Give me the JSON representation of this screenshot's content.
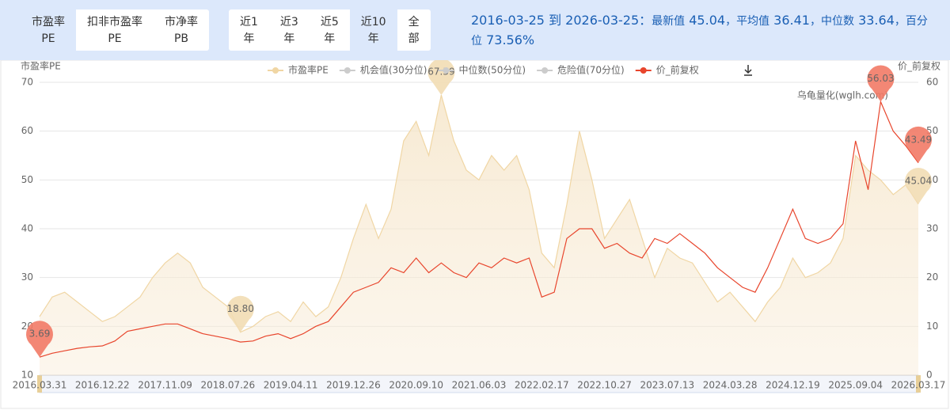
{
  "ui": {
    "metric_tabs": [
      {
        "line1": "市盈率",
        "line2": "PE",
        "active": true
      },
      {
        "line1": "扣非市盈率",
        "line2": "PE",
        "active": false
      },
      {
        "line1": "市净率",
        "line2": "PB",
        "active": false
      }
    ],
    "period_tabs": [
      {
        "line1": "近1",
        "line2": "年",
        "active": false
      },
      {
        "line1": "近3",
        "line2": "年",
        "active": false
      },
      {
        "line1": "近5",
        "line2": "年",
        "active": false
      },
      {
        "line1": "近10",
        "line2": "年",
        "active": true
      },
      {
        "line1": "全",
        "line2": "部",
        "active": false
      }
    ],
    "stats": {
      "range": "2016-03-25 到 2026-03-25：",
      "separator": "，",
      "items": [
        {
          "label": "最新值",
          "value": 45.04
        },
        {
          "label": "平均值",
          "value": 36.41
        },
        {
          "label": "中位数",
          "value": 33.64
        },
        {
          "label": "百分位",
          "value": "73.56%"
        }
      ]
    }
  },
  "chart_data": {
    "type": "line",
    "y_axis_name": "市盈率PE",
    "y2_axis_name": "价_前复权",
    "watermark": "乌龟量化(wglh.com)",
    "grid": true,
    "legend_position": "top",
    "categories": [
      "2016.03.31",
      null,
      null,
      null,
      null,
      "2016.12.22",
      null,
      null,
      null,
      null,
      "2017.11.09",
      null,
      null,
      null,
      null,
      "2018.07.26",
      null,
      null,
      null,
      null,
      "2019.04.11",
      null,
      null,
      null,
      null,
      "2019.12.26",
      null,
      null,
      null,
      null,
      "2020.09.10",
      null,
      null,
      null,
      null,
      "2021.06.03",
      null,
      null,
      null,
      null,
      "2022.02.17",
      null,
      null,
      null,
      null,
      "2022.10.27",
      null,
      null,
      null,
      null,
      "2023.07.13",
      null,
      null,
      null,
      null,
      "2024.03.28",
      null,
      null,
      null,
      null,
      "2024.12.19",
      null,
      null,
      null,
      null,
      "2025.09.04",
      null,
      null,
      null,
      null,
      "2026.03.17"
    ],
    "ylim": [
      10,
      70
    ],
    "yticks": [
      10,
      20,
      30,
      40,
      50,
      60,
      70
    ],
    "y2lim": [
      0,
      60
    ],
    "y2ticks": [
      0,
      10,
      20,
      30,
      40,
      50,
      60
    ],
    "series": [
      {
        "name": "市盈率PE",
        "color": "#f0d6a4",
        "area": true,
        "pin_color": "#f2ddb4",
        "pin_text_color": "#555555",
        "mark_points": [
          "min",
          "max",
          "last"
        ],
        "values": [
          22,
          26,
          27,
          25,
          23,
          21,
          22,
          24,
          26,
          30,
          33,
          35,
          33,
          28,
          26,
          24,
          18.8,
          20,
          22,
          23,
          21,
          25,
          22,
          24,
          30,
          38,
          45,
          38,
          44,
          58,
          62,
          55,
          67.39,
          58,
          52,
          50,
          55,
          52,
          55,
          48,
          35,
          32,
          45,
          60,
          50,
          38,
          42,
          46,
          38,
          30,
          36,
          34,
          33,
          29,
          25,
          27,
          24,
          21,
          25,
          28,
          34,
          30,
          31,
          33,
          38,
          55,
          52,
          50,
          47,
          49,
          45.04
        ],
        "value_labels": [
          null,
          null,
          null,
          null,
          null,
          null,
          null,
          null,
          null,
          null,
          null,
          null,
          null,
          null,
          null,
          null,
          "18.80",
          null,
          null,
          null,
          null,
          null,
          null,
          null,
          null,
          null,
          null,
          null,
          null,
          null,
          null,
          null,
          null,
          null,
          null,
          null,
          null,
          null,
          null,
          null,
          null,
          null,
          null,
          null,
          null,
          null,
          null,
          null,
          null,
          null,
          null,
          null,
          null,
          null,
          null,
          null,
          null,
          null,
          null,
          null,
          null,
          null,
          null,
          null,
          null,
          null,
          null,
          null,
          null,
          null,
          null
        ]
      },
      {
        "name": "价_前复权",
        "color": "#e8452c",
        "axis": "y2",
        "area": false,
        "pin_color": "#f27a66",
        "pin_text_color": "#e8332a",
        "mark_points": [
          "min",
          "max",
          "last"
        ],
        "values": [
          3.69,
          4.5,
          5,
          5.5,
          5.8,
          6,
          7,
          9,
          9.5,
          10,
          10.5,
          10.5,
          9.5,
          8.5,
          8,
          7.5,
          6.8,
          7,
          8,
          8.5,
          7.5,
          8.5,
          10,
          11,
          14,
          17,
          18,
          19,
          22,
          21,
          24,
          21,
          23,
          21,
          20,
          23,
          22,
          24,
          23,
          24,
          16,
          17,
          28,
          30,
          30,
          26,
          27,
          25,
          24,
          28,
          27,
          29,
          27,
          25,
          22,
          20,
          18,
          17,
          22,
          28,
          34,
          28,
          27,
          28,
          31,
          48,
          38,
          56.03,
          50,
          47,
          43.49
        ]
      }
    ],
    "hidden_series": [
      {
        "name": "机会值(30分位)",
        "color": "#cccccc"
      },
      {
        "name": "中位数(50分位)",
        "color": "#cccccc"
      },
      {
        "name": "危险值(70分位)",
        "color": "#cccccc"
      }
    ]
  }
}
